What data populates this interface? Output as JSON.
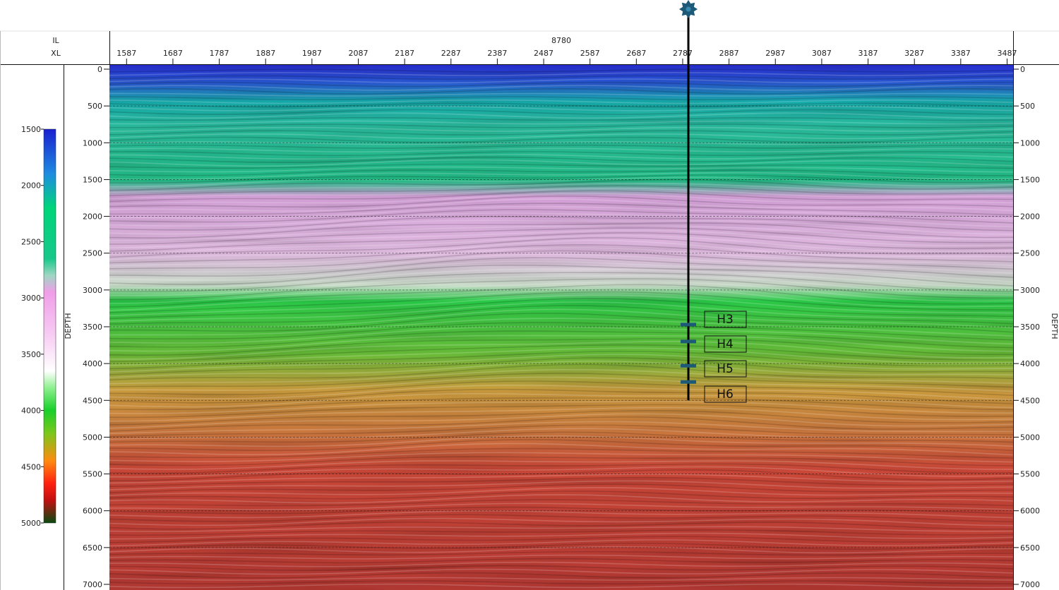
{
  "header": {
    "il_label": "IL",
    "xl_label": "XL",
    "il_value": "8780"
  },
  "chart_data": {
    "type": "heatmap",
    "title": "",
    "x_label": "XL",
    "y_label": "DEPTH",
    "x_ticks": [
      1587,
      1687,
      1787,
      1887,
      1987,
      2087,
      2187,
      2287,
      2387,
      2487,
      2587,
      2687,
      2787,
      2887,
      2987,
      3087,
      3187,
      3287,
      3387,
      3487
    ],
    "x_range": [
      1550,
      3500
    ],
    "y_ticks": [
      0,
      500,
      1000,
      1500,
      2000,
      2500,
      3000,
      3500,
      4000,
      4500,
      5000,
      5500,
      6000,
      6500,
      7000
    ],
    "y_range": [
      0,
      7000
    ],
    "grid": true,
    "colorbar": {
      "ticks": [
        1500,
        2000,
        2500,
        3000,
        3500,
        4000,
        4500,
        5000
      ],
      "range": [
        1500,
        5000
      ],
      "stops": [
        {
          "v": 1500,
          "color": "#1a1fd0"
        },
        {
          "v": 1900,
          "color": "#1e8de0"
        },
        {
          "v": 2200,
          "color": "#00d57a"
        },
        {
          "v": 2650,
          "color": "#18c88a"
        },
        {
          "v": 2800,
          "color": "#9fd6c4"
        },
        {
          "v": 2950,
          "color": "#f09ee8"
        },
        {
          "v": 3300,
          "color": "#f6c8f2"
        },
        {
          "v": 3650,
          "color": "#ffffff"
        },
        {
          "v": 3800,
          "color": "#8ef08e"
        },
        {
          "v": 4000,
          "color": "#18d02a"
        },
        {
          "v": 4200,
          "color": "#7ac81c"
        },
        {
          "v": 4450,
          "color": "#ff8a10"
        },
        {
          "v": 4650,
          "color": "#ff2010"
        },
        {
          "v": 4800,
          "color": "#c01010"
        },
        {
          "v": 5000,
          "color": "#0a4a10"
        }
      ]
    },
    "well": {
      "xl": 2800,
      "top_depth": 0,
      "bottom_depth": 4500,
      "symbol": "gas-well-icon",
      "color": "#1c5a78"
    },
    "horizons": [
      {
        "name": "H3",
        "depth": 3470
      },
      {
        "name": "H4",
        "depth": 3700
      },
      {
        "name": "H5",
        "depth": 4030
      },
      {
        "name": "H6",
        "depth": 4250
      }
    ]
  }
}
